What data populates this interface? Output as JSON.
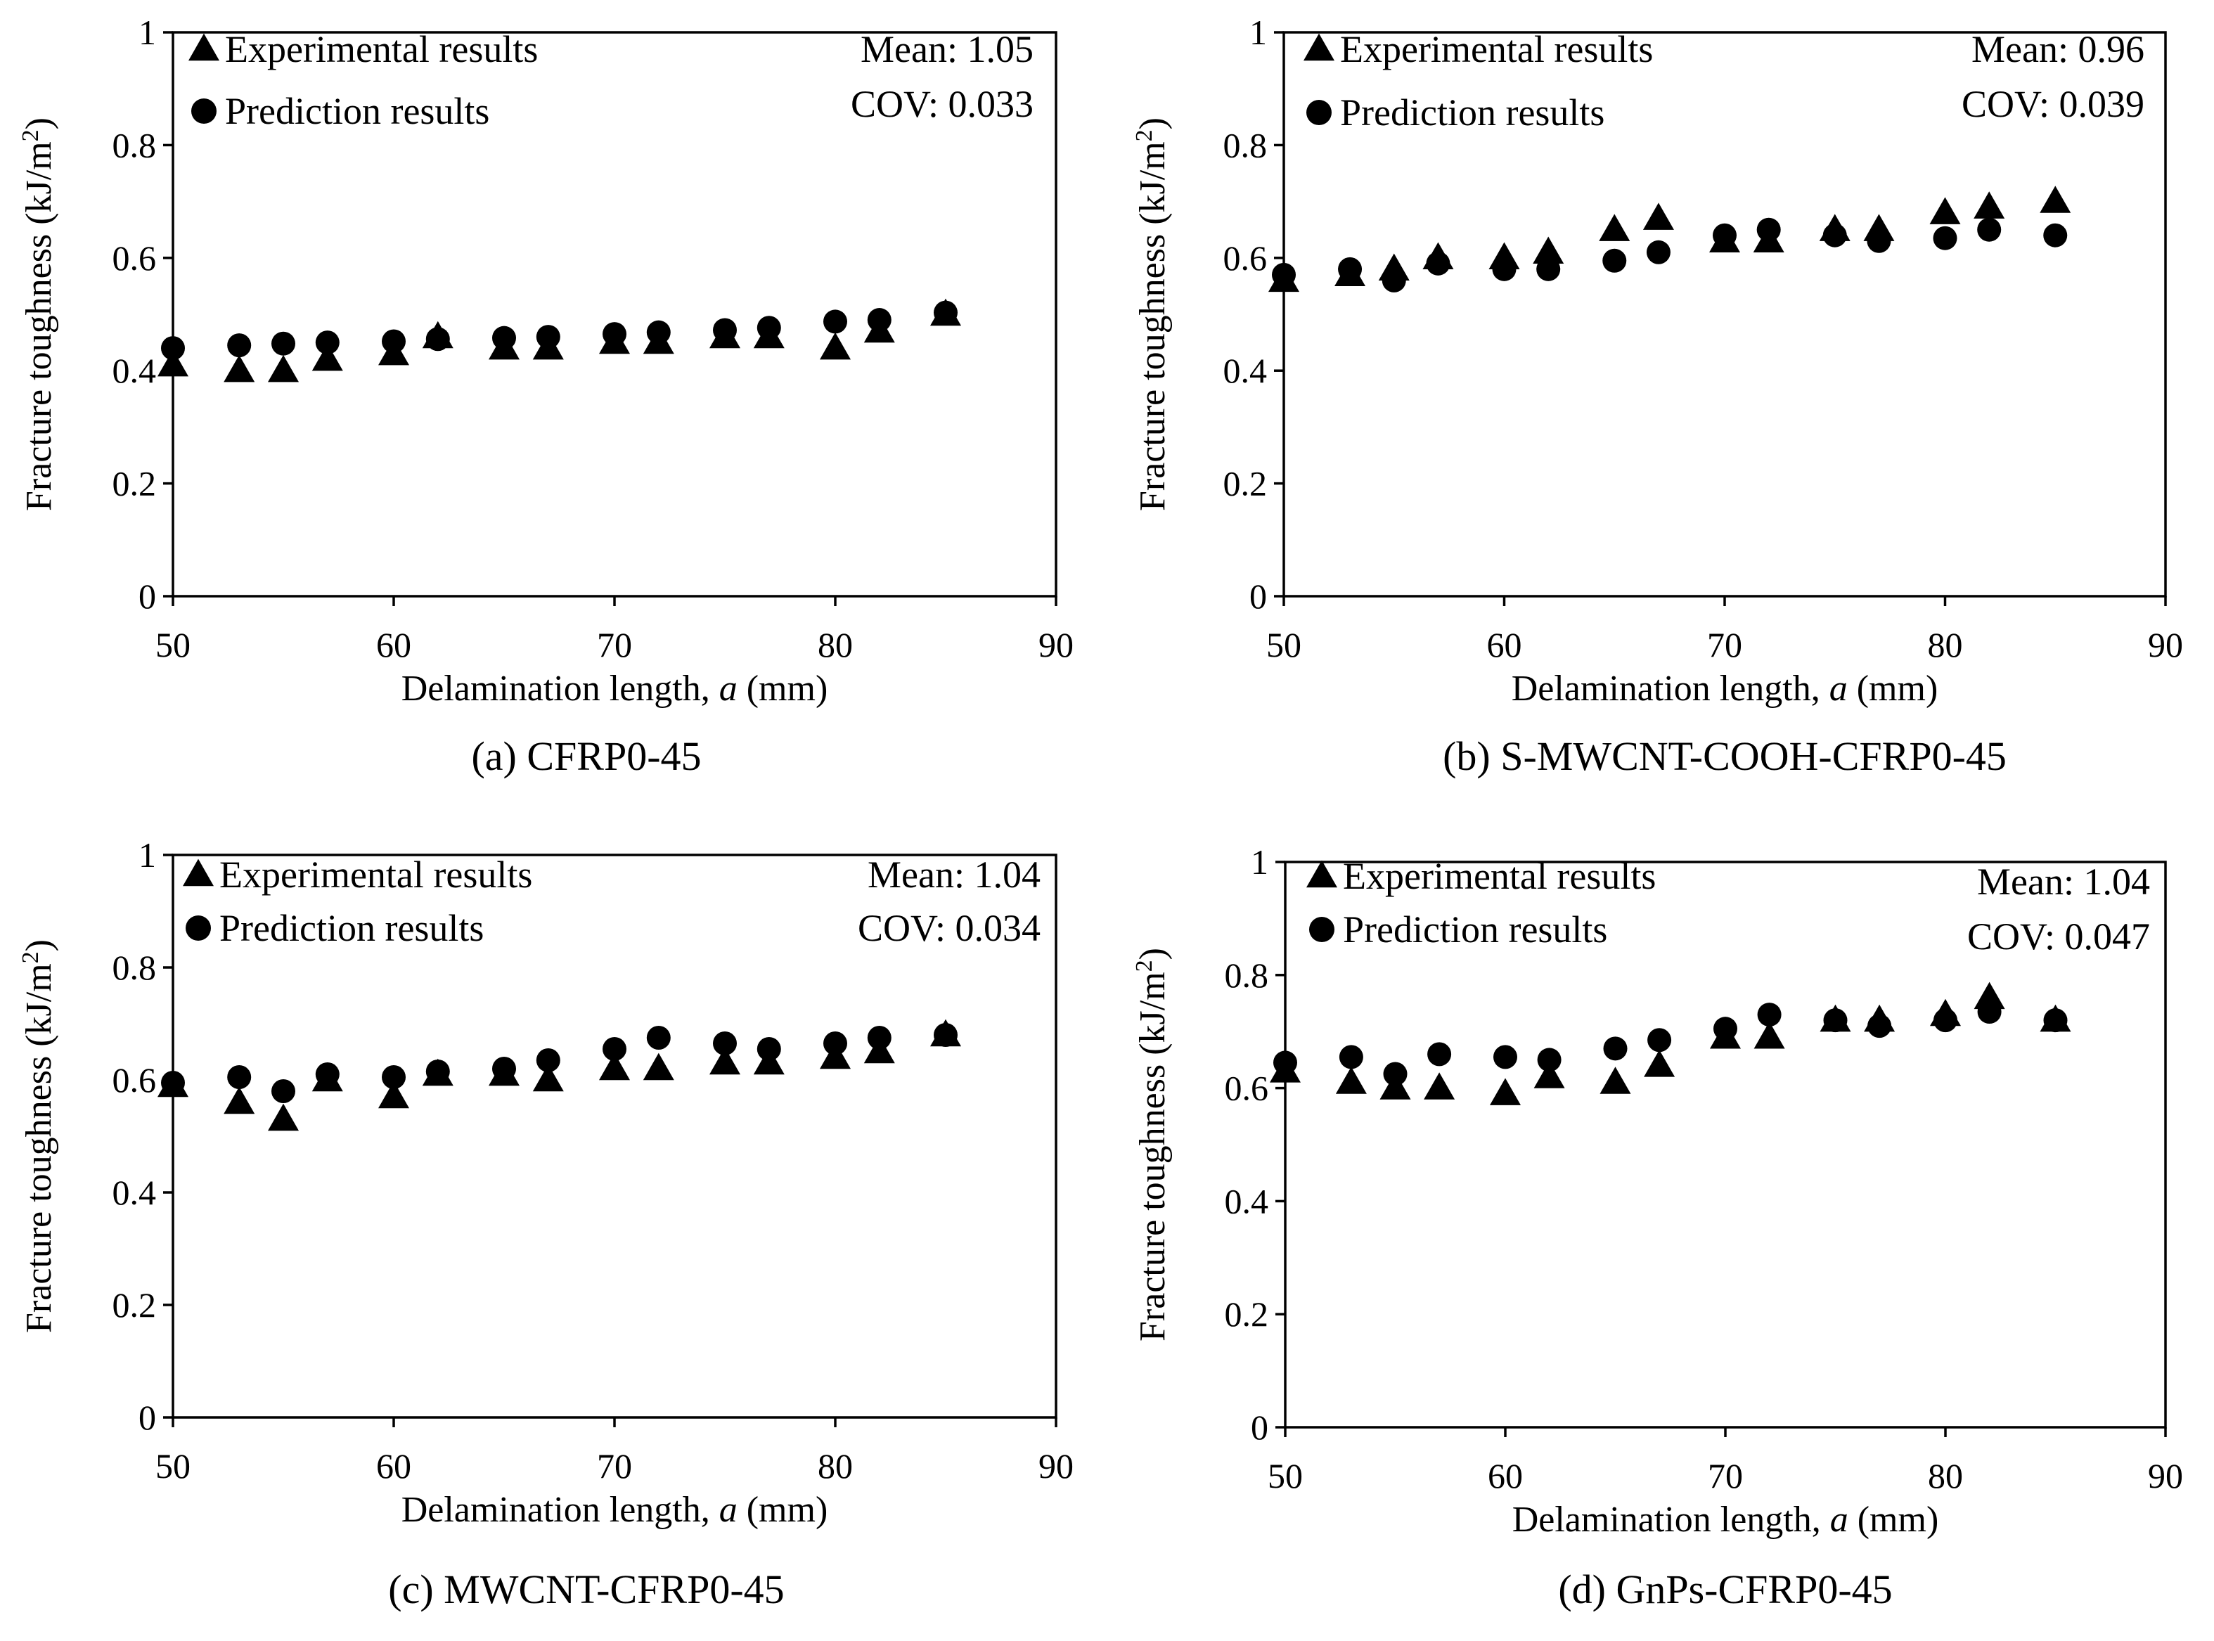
{
  "chart_data": [
    {
      "type": "scatter",
      "caption": "(a) CFRP0-45",
      "xlabel": "Delamination length,",
      "xlabel_var": "a",
      "xlabel_unit": "(mm)",
      "ylabel": "Fracture toughness (kJ/m",
      "ylabel_sup": "2",
      "ylabel_end": ")",
      "xlim": [
        50,
        90
      ],
      "ylim": [
        0,
        1
      ],
      "xticks": [
        "50",
        "60",
        "70",
        "80",
        "90"
      ],
      "yticks": [
        "0",
        "0.2",
        "0.4",
        "0.6",
        "0.8",
        "1"
      ],
      "stats": {
        "mean": "Mean: 1.05",
        "cov": "COV: 0.033"
      },
      "series": [
        {
          "name": "Experimental results",
          "marker": "triangle",
          "x": [
            50,
            53,
            55,
            57,
            60,
            62,
            65,
            67,
            70,
            72,
            75,
            77,
            80,
            82,
            85
          ],
          "y": [
            0.41,
            0.4,
            0.4,
            0.42,
            0.43,
            0.46,
            0.44,
            0.44,
            0.45,
            0.45,
            0.46,
            0.46,
            0.44,
            0.47,
            0.5
          ]
        },
        {
          "name": "Prediction results",
          "marker": "circle",
          "x": [
            50,
            53,
            55,
            57,
            60,
            62,
            65,
            67,
            70,
            72,
            75,
            77,
            80,
            82,
            85
          ],
          "y": [
            0.44,
            0.445,
            0.448,
            0.45,
            0.452,
            0.456,
            0.458,
            0.46,
            0.465,
            0.468,
            0.472,
            0.476,
            0.487,
            0.49,
            0.503
          ]
        }
      ]
    },
    {
      "type": "scatter",
      "caption": "(b) S-MWCNT-COOH-CFRP0-45",
      "xlabel": "Delamination length,",
      "xlabel_var": "a",
      "xlabel_unit": "(mm)",
      "ylabel": "Fracture toughness (kJ/m",
      "ylabel_sup": "2",
      "ylabel_end": ")",
      "xlim": [
        50,
        90
      ],
      "ylim": [
        0,
        1
      ],
      "xticks": [
        "50",
        "60",
        "70",
        "80",
        "90"
      ],
      "yticks": [
        "0",
        "0.2",
        "0.4",
        "0.6",
        "0.8",
        "1"
      ],
      "stats": {
        "mean": "Mean: 0.96",
        "cov": "COV: 0.039"
      },
      "series": [
        {
          "name": "Experimental results",
          "marker": "triangle",
          "x": [
            50,
            53,
            55,
            57,
            60,
            62,
            65,
            67,
            70,
            72,
            75,
            77,
            80,
            82,
            85
          ],
          "y": [
            0.56,
            0.57,
            0.58,
            0.6,
            0.6,
            0.61,
            0.65,
            0.67,
            0.63,
            0.63,
            0.65,
            0.65,
            0.68,
            0.69,
            0.7
          ]
        },
        {
          "name": "Prediction results",
          "marker": "circle",
          "x": [
            50,
            53,
            55,
            57,
            60,
            62,
            65,
            67,
            70,
            72,
            75,
            77,
            80,
            82,
            85
          ],
          "y": [
            0.57,
            0.58,
            0.56,
            0.59,
            0.58,
            0.58,
            0.595,
            0.61,
            0.64,
            0.65,
            0.64,
            0.63,
            0.635,
            0.65,
            0.64
          ]
        }
      ]
    },
    {
      "type": "scatter",
      "caption": "(c) MWCNT-CFRP0-45",
      "xlabel": "Delamination length,",
      "xlabel_var": "a",
      "xlabel_unit": "(mm)",
      "ylabel": "Fracture toughness (kJ/m",
      "ylabel_sup": "2",
      "ylabel_end": ")",
      "xlim": [
        50,
        90
      ],
      "ylim": [
        0,
        1
      ],
      "xticks": [
        "50",
        "60",
        "70",
        "80",
        "90"
      ],
      "yticks": [
        "0",
        "0.2",
        "0.4",
        "0.6",
        "0.8",
        "1"
      ],
      "stats": {
        "mean": "Mean: 1.04",
        "cov": "COV: 0.034"
      },
      "series": [
        {
          "name": "Experimental results",
          "marker": "triangle",
          "x": [
            50,
            53,
            55,
            57,
            60,
            62,
            65,
            67,
            70,
            72,
            75,
            77,
            80,
            82,
            85
          ],
          "y": [
            0.59,
            0.56,
            0.53,
            0.6,
            0.57,
            0.61,
            0.61,
            0.6,
            0.62,
            0.62,
            0.63,
            0.63,
            0.64,
            0.65,
            0.68
          ]
        },
        {
          "name": "Prediction results",
          "marker": "circle",
          "x": [
            50,
            53,
            55,
            57,
            60,
            62,
            65,
            67,
            70,
            72,
            75,
            77,
            80,
            82,
            85
          ],
          "y": [
            0.595,
            0.605,
            0.58,
            0.61,
            0.605,
            0.615,
            0.62,
            0.635,
            0.655,
            0.675,
            0.665,
            0.655,
            0.665,
            0.675,
            0.68
          ]
        }
      ]
    },
    {
      "type": "scatter",
      "caption": "(d) GnPs-CFRP0-45",
      "xlabel": "Delamination length,",
      "xlabel_var": "a",
      "xlabel_unit": "(mm)",
      "ylabel": "Fracture toughness (kJ/m",
      "ylabel_sup": "2",
      "ylabel_end": ")",
      "xlim": [
        50,
        90
      ],
      "ylim": [
        0,
        1
      ],
      "xticks": [
        "50",
        "60",
        "70",
        "80",
        "90"
      ],
      "yticks": [
        "0",
        "0.2",
        "0.4",
        "0.6",
        "0.8",
        "1"
      ],
      "stats": {
        "mean": "Mean: 1.04",
        "cov": "COV: 0.047"
      },
      "series": [
        {
          "name": "Experimental results",
          "marker": "triangle",
          "x": [
            50,
            53,
            55,
            57,
            60,
            62,
            65,
            67,
            70,
            72,
            75,
            77,
            80,
            82,
            85
          ],
          "y": [
            0.63,
            0.61,
            0.6,
            0.6,
            0.59,
            0.62,
            0.61,
            0.64,
            0.69,
            0.69,
            0.72,
            0.72,
            0.73,
            0.76,
            0.72
          ]
        },
        {
          "name": "Prediction results",
          "marker": "circle",
          "x": [
            50,
            53,
            55,
            57,
            60,
            62,
            65,
            67,
            70,
            72,
            75,
            77,
            80,
            82,
            85
          ],
          "y": [
            0.645,
            0.655,
            0.625,
            0.66,
            0.655,
            0.65,
            0.67,
            0.685,
            0.705,
            0.73,
            0.72,
            0.71,
            0.72,
            0.735,
            0.72
          ]
        }
      ]
    }
  ]
}
